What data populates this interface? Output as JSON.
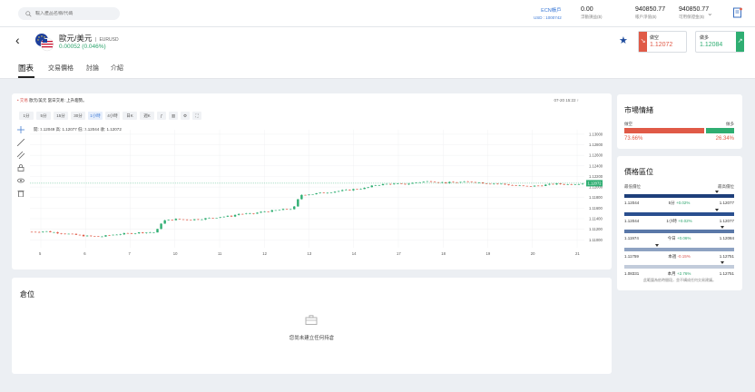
{
  "search": {
    "placeholder": "輸入產品名稱/代碼"
  },
  "account": {
    "type": "ECN帳戶",
    "currency": "USD : 1000742",
    "items": [
      {
        "value": "0.00",
        "label": "浮動損益($)"
      },
      {
        "value": "940850.77",
        "label": "帳戶淨值($)"
      },
      {
        "value": "940850.77",
        "label": "可用保證金($)"
      }
    ]
  },
  "instrument": {
    "name": "歐元/美元",
    "code": "EURUSD",
    "change": "0.00052 (0.046%)",
    "sell_label": "做空",
    "sell_price": "1.12072",
    "buy_label": "做多",
    "buy_price": "1.12084"
  },
  "tabs": [
    "圖表",
    "交易價格",
    "討論",
    "介紹"
  ],
  "chart": {
    "live": "• 交易",
    "headline": "歐元/美元 當日交易: 上升趨勢。",
    "time": "07-20 15:22 ↑",
    "timeframes": [
      "1分",
      "5分",
      "15分",
      "30分",
      "1小時",
      "4小時",
      "日K",
      "週K"
    ],
    "active_timeframe": "1小時",
    "ohlc": "開: 1.12049  高: 1.12077  低: 1.12044  收: 1.12072",
    "current_price": "1.12072"
  },
  "chart_data": {
    "type": "candlestick",
    "x_ticks": [
      "5",
      "6",
      "7",
      "10",
      "11",
      "12",
      "13",
      "14",
      "17",
      "18",
      "19",
      "20",
      "21"
    ],
    "y_ticks": [
      "1.13000",
      "1.12800",
      "1.12600",
      "1.12400",
      "1.12200",
      "1.12000",
      "1.11800",
      "1.11600",
      "1.11400",
      "1.11200",
      "1.11000"
    ],
    "ylim": [
      1.1085,
      1.1305
    ],
    "close_path": [
      [
        0,
        1.1115
      ],
      [
        4,
        1.1116
      ],
      [
        8,
        1.1113
      ],
      [
        12,
        1.111
      ],
      [
        16,
        1.1107
      ],
      [
        20,
        1.1106
      ],
      [
        24,
        1.111
      ],
      [
        28,
        1.1112
      ],
      [
        32,
        1.1114
      ],
      [
        36,
        1.1114
      ],
      [
        38,
        1.1136
      ],
      [
        42,
        1.1139
      ],
      [
        46,
        1.1138
      ],
      [
        50,
        1.114
      ],
      [
        54,
        1.1143
      ],
      [
        58,
        1.1145
      ],
      [
        60,
        1.1149
      ],
      [
        64,
        1.1149
      ],
      [
        66,
        1.1152
      ],
      [
        70,
        1.1155
      ],
      [
        74,
        1.1158
      ],
      [
        76,
        1.1159
      ],
      [
        78,
        1.1185
      ],
      [
        82,
        1.1187
      ],
      [
        86,
        1.119
      ],
      [
        90,
        1.1193
      ],
      [
        94,
        1.1196
      ],
      [
        97,
        1.1198
      ],
      [
        100,
        1.1204
      ],
      [
        104,
        1.1206
      ],
      [
        108,
        1.1205
      ],
      [
        112,
        1.1209
      ],
      [
        116,
        1.1211
      ],
      [
        120,
        1.1208
      ],
      [
        124,
        1.1209
      ],
      [
        128,
        1.121
      ],
      [
        132,
        1.1207
      ],
      [
        136,
        1.1206
      ],
      [
        140,
        1.1203
      ],
      [
        144,
        1.1201
      ],
      [
        148,
        1.1203
      ],
      [
        152,
        1.1206
      ],
      [
        156,
        1.1205
      ],
      [
        160,
        1.1207
      ]
    ],
    "last_price": 1.12072
  },
  "position": {
    "title": "倉位",
    "empty_text": "您尚未建立任何持倉"
  },
  "sentiment": {
    "title": "市場情緒",
    "sell_label": "做空",
    "buy_label": "做多",
    "sell_pct": "73.66%",
    "buy_pct": "26.34%",
    "sell_value": 73.66
  },
  "ranges": {
    "title": "價格區位",
    "low_header": "最低價位",
    "high_header": "最高價位",
    "rows": [
      {
        "period": "5分",
        "change": "+0.02%",
        "dir": "up",
        "low": "1.12044",
        "high": "1.12077",
        "marker": 0.85,
        "color": "#1d3f7a"
      },
      {
        "period": "1小時",
        "change": "+0.02%",
        "dir": "up",
        "low": "1.12044",
        "high": "1.12077",
        "marker": 0.85,
        "color": "#2a4f8f"
      },
      {
        "period": "今日",
        "change": "+0.06%",
        "dir": "up",
        "low": "1.11974",
        "high": "1.12084",
        "marker": 0.9,
        "color": "#5a78a8"
      },
      {
        "period": "本週",
        "change": "-0.15%",
        "dir": "dn",
        "low": "1.11759",
        "high": "1.12751",
        "marker": 0.3,
        "color": "#8ea2c2"
      },
      {
        "period": "本月",
        "change": "+2.76%",
        "dir": "up",
        "low": "1.08331",
        "high": "1.12751",
        "marker": 0.9,
        "color": "#c2ccdb"
      }
    ],
    "note": "此範圍為依時間段，並不構成任何交易建議。"
  }
}
